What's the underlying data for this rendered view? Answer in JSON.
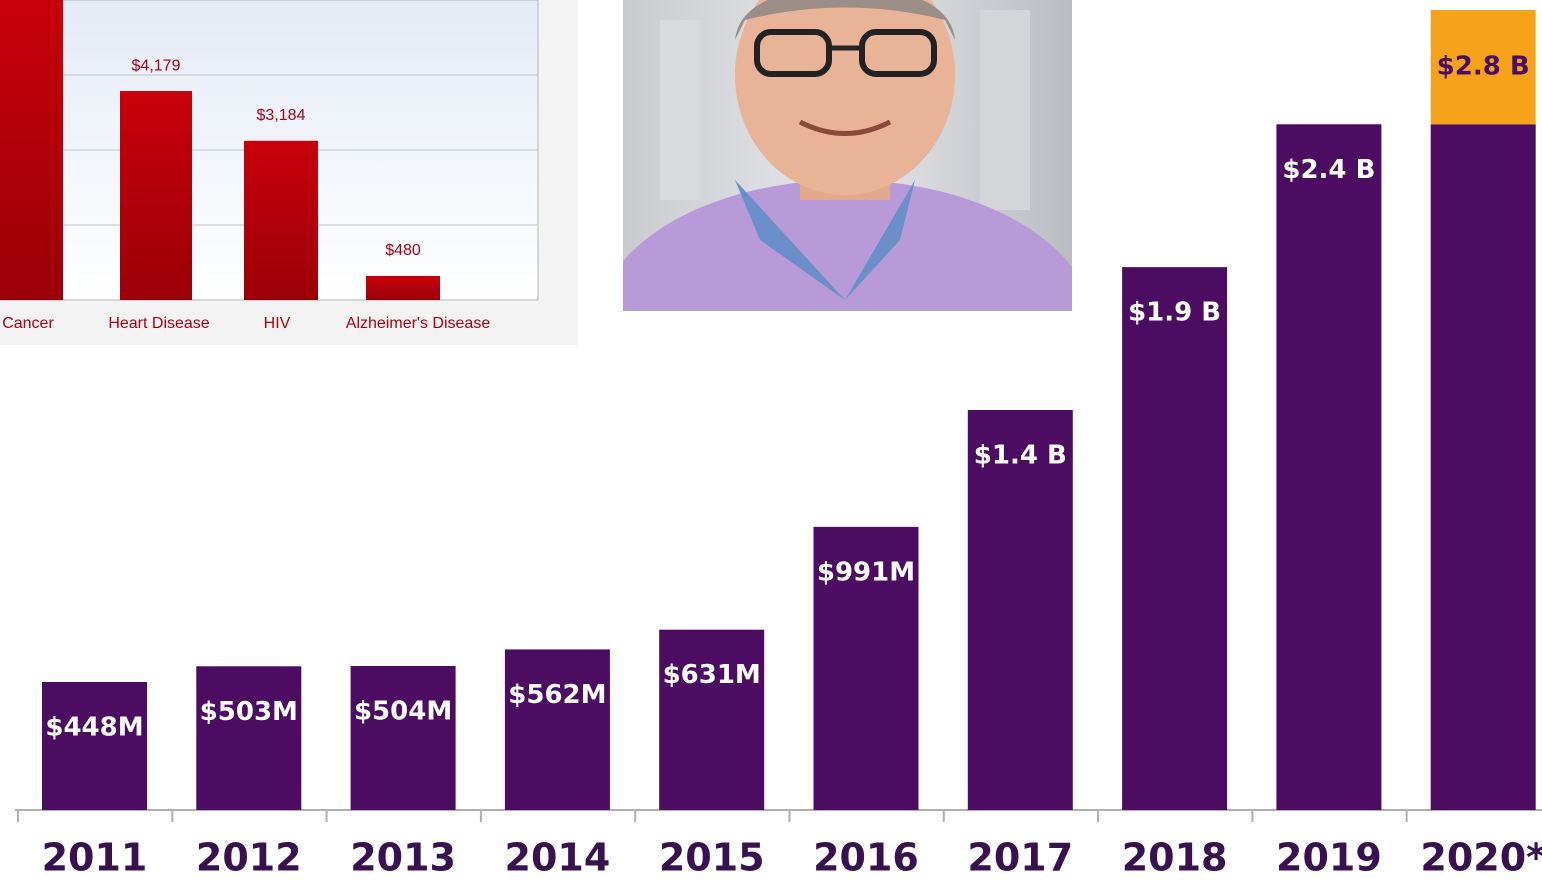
{
  "chart_data": [
    {
      "type": "bar",
      "categories": [
        "Cancer",
        "Heart Disease",
        "HIV",
        "Alzheimer's Disease"
      ],
      "values": [
        6000,
        4179,
        3184,
        480
      ],
      "value_labels": [
        null,
        "$4,179",
        "$3,184",
        "$480"
      ],
      "color": "#c00000",
      "ylim": [
        0,
        6000
      ],
      "grid": true
    },
    {
      "type": "stacked_bar",
      "categories": [
        "2011",
        "2012",
        "2013",
        "2014",
        "2015",
        "2016",
        "2017",
        "2018",
        "2019",
        "2020*"
      ],
      "series": [
        {
          "color": "#4b0c62",
          "values": [
            448,
            503,
            504,
            562,
            631,
            991,
            1400,
            1900,
            2400,
            2400
          ],
          "value_labels": [
            "$448M",
            "$503M",
            "$504M",
            "$562M",
            "$631M",
            "$991M",
            "$1.4 B",
            "$1.9 B",
            "$2.4 B",
            null
          ]
        },
        {
          "color": "#f7a21b",
          "values": [
            null,
            null,
            null,
            null,
            null,
            null,
            null,
            null,
            null,
            400
          ]
        }
      ],
      "annotations": [
        "$2.8 B"
      ],
      "ylim": [
        0,
        2800
      ]
    }
  ]
}
